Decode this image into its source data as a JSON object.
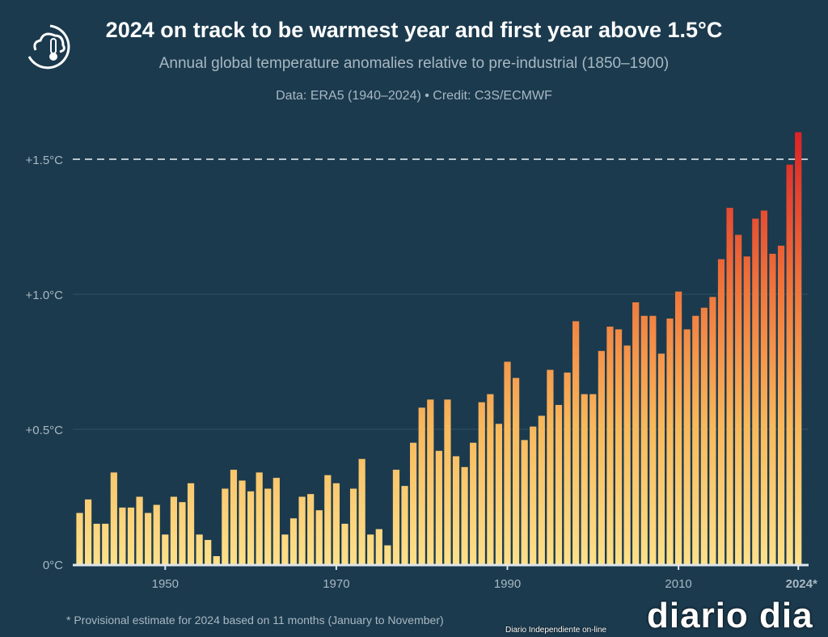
{
  "header": {
    "title": "2024 on track to be warmest year and first year above 1.5°C",
    "subtitle": "Annual global temperature anomalies relative to pre-industrial (1850–1900)",
    "source": "Data: ERA5 (1940–2024) • Credit: C3S/ECMWF"
  },
  "footnote": "* Provisional estimate for 2024 based on 11 months (January to November)",
  "logo": {
    "icon": "cloud-thermometer-icon"
  },
  "watermark": {
    "text": "diario dia",
    "tagline": "Diario Independiente on-line"
  },
  "colors": {
    "background": "#1b3a4e",
    "bar_low": "#fde08a",
    "bar_mid": "#f6a550",
    "bar_high": "#df2a26",
    "threshold_line": "#b9c6ce"
  },
  "chart_data": {
    "type": "bar",
    "title": "2024 on track to be warmest year and first year above 1.5°C",
    "subtitle": "Annual global temperature anomalies relative to pre-industrial (1850–1900)",
    "xlabel": "",
    "ylabel": "",
    "ylim": [
      0,
      1.6
    ],
    "yticks": [
      {
        "value": 0,
        "label": "0°C"
      },
      {
        "value": 0.5,
        "label": "+0.5°C"
      },
      {
        "value": 1.0,
        "label": "+1.0°C"
      },
      {
        "value": 1.5,
        "label": "+1.5°C"
      }
    ],
    "xticks": [
      {
        "value": 1950,
        "label": "1950"
      },
      {
        "value": 1970,
        "label": "1970"
      },
      {
        "value": 1990,
        "label": "1990"
      },
      {
        "value": 2010,
        "label": "2010"
      },
      {
        "value": 2024,
        "label": "2024*"
      }
    ],
    "grid": true,
    "threshold": {
      "value": 1.5,
      "style": "dashed"
    },
    "x_start": 1940,
    "values": [
      0.19,
      0.24,
      0.15,
      0.15,
      0.34,
      0.21,
      0.21,
      0.25,
      0.19,
      0.22,
      0.11,
      0.25,
      0.23,
      0.3,
      0.11,
      0.09,
      0.03,
      0.28,
      0.35,
      0.31,
      0.27,
      0.34,
      0.28,
      0.32,
      0.11,
      0.17,
      0.25,
      0.26,
      0.2,
      0.33,
      0.3,
      0.15,
      0.28,
      0.39,
      0.11,
      0.13,
      0.07,
      0.35,
      0.29,
      0.45,
      0.58,
      0.61,
      0.42,
      0.61,
      0.4,
      0.36,
      0.45,
      0.6,
      0.63,
      0.52,
      0.75,
      0.69,
      0.46,
      0.51,
      0.55,
      0.72,
      0.59,
      0.71,
      0.9,
      0.63,
      0.63,
      0.79,
      0.88,
      0.87,
      0.81,
      0.97,
      0.92,
      0.92,
      0.78,
      0.91,
      1.01,
      0.87,
      0.92,
      0.95,
      0.99,
      1.13,
      1.32,
      1.22,
      1.14,
      1.28,
      1.31,
      1.15,
      1.18,
      1.48,
      1.6
    ]
  }
}
